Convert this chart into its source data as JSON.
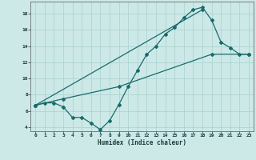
{
  "xlabel": "Humidex (Indice chaleur)",
  "ylabel": "",
  "bg_color": "#cce9e8",
  "grid_color": "#aed4d3",
  "line_color": "#1a6b6b",
  "xlim": [
    -0.5,
    23.5
  ],
  "ylim": [
    3.5,
    19.5
  ],
  "xticks": [
    0,
    1,
    2,
    3,
    4,
    5,
    6,
    7,
    8,
    9,
    10,
    11,
    12,
    13,
    14,
    15,
    16,
    17,
    18,
    19,
    20,
    21,
    22,
    23
  ],
  "yticks": [
    4,
    6,
    8,
    10,
    12,
    14,
    16,
    18
  ],
  "line1_x": [
    0,
    1,
    2,
    3,
    4,
    5,
    6,
    7,
    8,
    9,
    10,
    11,
    12,
    13,
    14,
    15,
    16,
    17,
    18,
    19,
    20,
    21,
    22,
    23
  ],
  "line1_y": [
    6.7,
    7.0,
    7.0,
    6.5,
    5.2,
    5.2,
    4.5,
    3.7,
    4.8,
    6.8,
    9.0,
    11.0,
    13.0,
    14.0,
    15.5,
    16.3,
    17.5,
    18.5,
    18.8,
    17.2,
    14.5,
    13.8,
    13.0,
    13.0
  ],
  "line2_x": [
    0,
    3,
    9,
    19,
    23
  ],
  "line2_y": [
    6.7,
    7.5,
    9.0,
    13.0,
    13.0
  ],
  "line3_x": [
    0,
    18
  ],
  "line3_y": [
    6.7,
    18.5
  ]
}
